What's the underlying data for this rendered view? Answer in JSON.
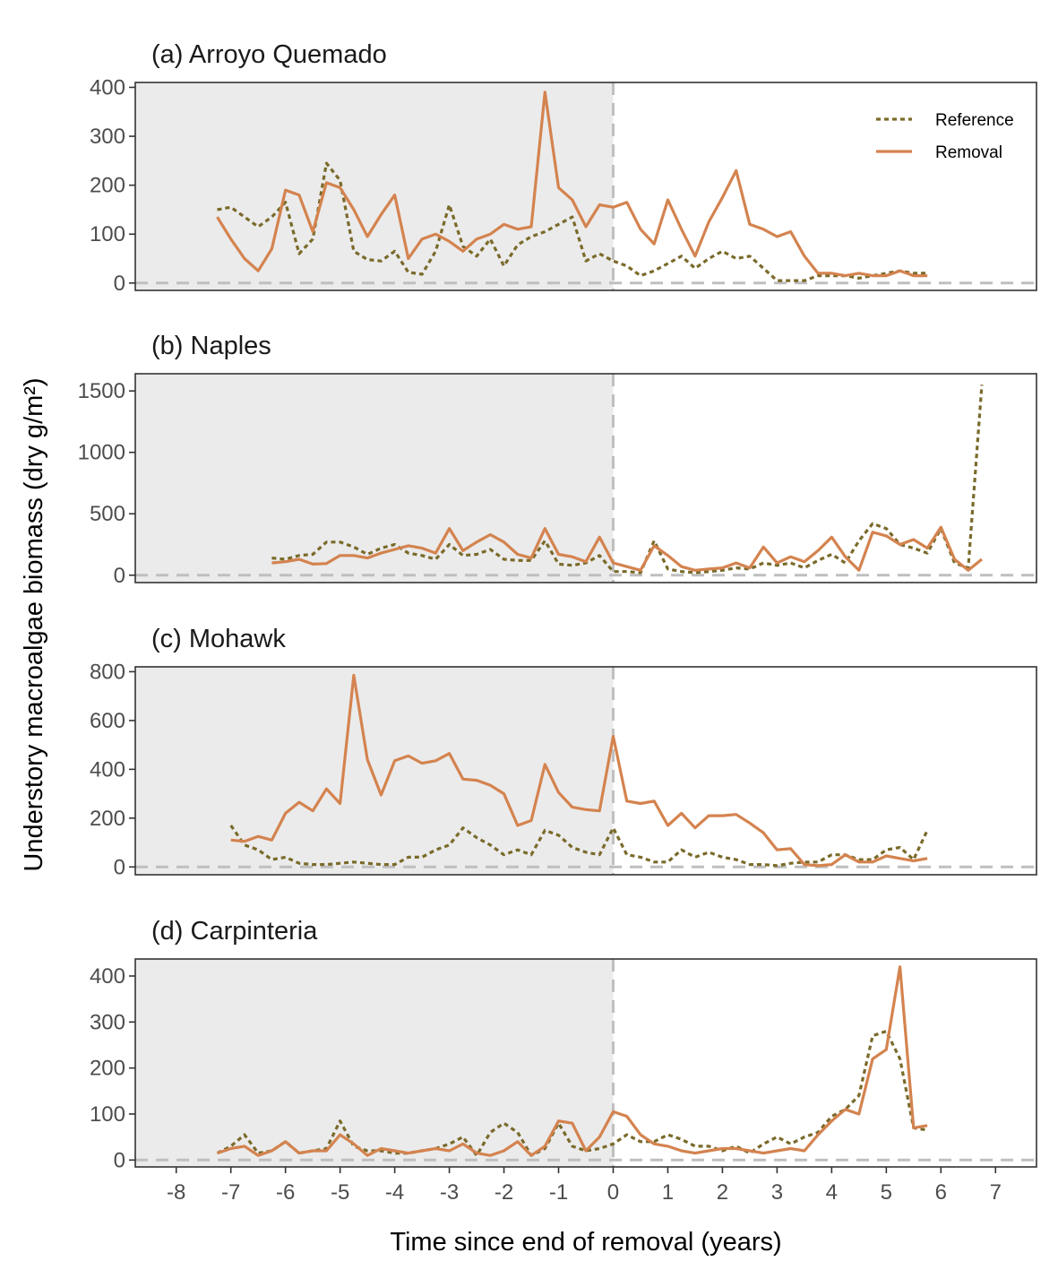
{
  "figure": {
    "ylabel": "Understory macroalgae biomass (dry g/m²)",
    "xlabel": "Time since end of removal (years)"
  },
  "legend": {
    "items": [
      {
        "label": "Reference",
        "color": "#7a6a2a",
        "style": "dotted"
      },
      {
        "label": "Removal",
        "color": "#d4834f",
        "style": "solid"
      }
    ]
  },
  "colors": {
    "reference": "#7a6a2a",
    "removal": "#d4834f",
    "shading": "#ebebeb",
    "reference_lines": "#bfbfbf"
  },
  "chart_data": [
    {
      "type": "line",
      "title": "(a) Arroyo Quemado",
      "xlim": [
        -8.75,
        7.75
      ],
      "ylim": [
        -15,
        410
      ],
      "yticks": [
        0,
        100,
        200,
        300,
        400
      ],
      "shaded_region": [
        -8.75,
        0
      ],
      "hlines": [
        0
      ],
      "vlines": [
        0
      ],
      "series": [
        {
          "name": "Reference",
          "style": "dotted",
          "x": [
            -7.25,
            -7,
            -6.75,
            -6.5,
            -6.25,
            -6,
            -5.75,
            -5.5,
            -5.25,
            -5,
            -4.75,
            -4.5,
            -4.25,
            -4,
            -3.75,
            -3.5,
            -3.25,
            -3,
            -2.75,
            -2.5,
            -2.25,
            -2,
            -1.75,
            -1.5,
            -1.25,
            -1,
            -0.75,
            -0.5,
            -0.25,
            0,
            0.25,
            0.5,
            0.75,
            1,
            1.25,
            1.5,
            1.75,
            2,
            2.25,
            2.5,
            2.75,
            3,
            3.25,
            3.5,
            3.75,
            4,
            4.25,
            4.5,
            4.75,
            5,
            5.25,
            5.5,
            5.75
          ],
          "y": [
            150,
            155,
            135,
            115,
            135,
            165,
            60,
            90,
            245,
            210,
            65,
            48,
            45,
            65,
            22,
            18,
            65,
            160,
            75,
            55,
            90,
            35,
            78,
            95,
            105,
            120,
            135,
            45,
            60,
            45,
            35,
            15,
            25,
            40,
            55,
            30,
            50,
            65,
            50,
            55,
            30,
            5,
            5,
            5,
            15,
            15,
            15,
            10,
            15,
            20,
            25,
            20,
            20
          ]
        },
        {
          "name": "Removal",
          "style": "solid",
          "x": [
            -7.25,
            -7,
            -6.75,
            -6.5,
            -6.25,
            -6,
            -5.75,
            -5.5,
            -5.25,
            -5,
            -4.75,
            -4.5,
            -4.25,
            -4,
            -3.75,
            -3.5,
            -3.25,
            -3,
            -2.75,
            -2.5,
            -2.25,
            -2,
            -1.75,
            -1.5,
            -1.25,
            -1,
            -0.75,
            -0.5,
            -0.25,
            0,
            0.25,
            0.5,
            0.75,
            1,
            1.25,
            1.5,
            1.75,
            2,
            2.25,
            2.5,
            2.75,
            3,
            3.25,
            3.5,
            3.75,
            4,
            4.25,
            4.5,
            4.75,
            5,
            5.25,
            5.5,
            5.75
          ],
          "y": [
            135,
            90,
            50,
            25,
            70,
            190,
            180,
            105,
            205,
            195,
            150,
            95,
            140,
            180,
            50,
            90,
            100,
            85,
            65,
            90,
            100,
            120,
            110,
            115,
            390,
            195,
            170,
            115,
            160,
            155,
            165,
            110,
            80,
            170,
            110,
            55,
            125,
            175,
            230,
            120,
            110,
            95,
            105,
            55,
            20,
            20,
            15,
            20,
            15,
            15,
            25,
            15,
            15
          ]
        }
      ]
    },
    {
      "type": "line",
      "title": "(b) Naples",
      "xlim": [
        -8.75,
        7.75
      ],
      "ylim": [
        -60,
        1640
      ],
      "yticks": [
        0,
        500,
        1000,
        1500
      ],
      "shaded_region": [
        -8.75,
        0
      ],
      "hlines": [
        0
      ],
      "vlines": [
        0
      ],
      "series": [
        {
          "name": "Reference",
          "style": "dotted",
          "x": [
            -6.25,
            -6,
            -5.75,
            -5.5,
            -5.25,
            -5,
            -4.75,
            -4.5,
            -4.25,
            -4,
            -3.75,
            -3.5,
            -3.25,
            -3,
            -2.75,
            -2.5,
            -2.25,
            -2,
            -1.75,
            -1.5,
            -1.25,
            -1,
            -0.75,
            -0.5,
            -0.25,
            0,
            0.25,
            0.5,
            0.75,
            1,
            1.25,
            1.5,
            1.75,
            2,
            2.25,
            2.5,
            2.75,
            3,
            3.25,
            3.5,
            3.75,
            4,
            4.25,
            4.5,
            4.75,
            5,
            5.25,
            5.5,
            5.75,
            6,
            6.25,
            6.5,
            6.75
          ],
          "y": [
            140,
            130,
            160,
            170,
            270,
            270,
            230,
            170,
            220,
            250,
            180,
            160,
            130,
            250,
            160,
            170,
            210,
            130,
            120,
            120,
            280,
            90,
            80,
            100,
            160,
            30,
            30,
            20,
            280,
            50,
            30,
            20,
            30,
            40,
            60,
            50,
            100,
            80,
            100,
            60,
            120,
            170,
            100,
            280,
            420,
            380,
            250,
            220,
            180,
            380,
            100,
            60,
            1550
          ]
        },
        {
          "name": "Removal",
          "style": "solid",
          "x": [
            -6.25,
            -6,
            -5.75,
            -5.5,
            -5.25,
            -5,
            -4.75,
            -4.5,
            -4.25,
            -4,
            -3.75,
            -3.5,
            -3.25,
            -3,
            -2.75,
            -2.5,
            -2.25,
            -2,
            -1.75,
            -1.5,
            -1.25,
            -1,
            -0.75,
            -0.5,
            -0.25,
            0,
            0.25,
            0.5,
            0.75,
            1,
            1.25,
            1.5,
            1.75,
            2,
            2.25,
            2.5,
            2.75,
            3,
            3.25,
            3.5,
            3.75,
            4,
            4.25,
            4.5,
            4.75,
            5,
            5.25,
            5.5,
            5.75,
            6,
            6.25,
            6.5,
            6.75
          ],
          "y": [
            100,
            110,
            130,
            90,
            95,
            160,
            160,
            140,
            180,
            210,
            240,
            220,
            180,
            380,
            200,
            270,
            330,
            270,
            170,
            140,
            380,
            170,
            150,
            110,
            310,
            100,
            70,
            40,
            240,
            160,
            70,
            40,
            50,
            60,
            100,
            60,
            230,
            100,
            150,
            110,
            200,
            310,
            150,
            40,
            350,
            320,
            250,
            290,
            220,
            390,
            130,
            40,
            130
          ]
        }
      ]
    },
    {
      "type": "line",
      "title": "(c) Mohawk",
      "xlim": [
        -8.75,
        7.75
      ],
      "ylim": [
        -32,
        820
      ],
      "yticks": [
        0,
        200,
        400,
        600,
        800
      ],
      "shaded_region": [
        -8.75,
        0
      ],
      "hlines": [
        0
      ],
      "vlines": [
        0
      ],
      "series": [
        {
          "name": "Reference",
          "style": "dotted",
          "x": [
            -7,
            -6.75,
            -6.5,
            -6.25,
            -6,
            -5.75,
            -5.5,
            -5.25,
            -5,
            -4.75,
            -4.5,
            -4.25,
            -4,
            -3.75,
            -3.5,
            -3.25,
            -3,
            -2.75,
            -2.5,
            -2.25,
            -2,
            -1.75,
            -1.5,
            -1.25,
            -1,
            -0.75,
            -0.5,
            -0.25,
            0,
            0.25,
            0.5,
            0.75,
            1,
            1.25,
            1.5,
            1.75,
            2,
            2.25,
            2.5,
            2.75,
            3,
            3.25,
            3.5,
            3.75,
            4,
            4.25,
            4.5,
            4.75,
            5,
            5.25,
            5.5,
            5.75
          ],
          "y": [
            170,
            90,
            70,
            30,
            40,
            15,
            10,
            10,
            15,
            20,
            15,
            10,
            10,
            40,
            40,
            70,
            90,
            160,
            120,
            90,
            50,
            70,
            50,
            150,
            130,
            80,
            60,
            50,
            160,
            50,
            40,
            20,
            20,
            70,
            40,
            60,
            40,
            30,
            10,
            10,
            5,
            15,
            20,
            20,
            50,
            50,
            30,
            30,
            70,
            80,
            30,
            150
          ]
        },
        {
          "name": "Removal",
          "style": "solid",
          "x": [
            -7,
            -6.75,
            -6.5,
            -6.25,
            -6,
            -5.75,
            -5.5,
            -5.25,
            -5,
            -4.75,
            -4.5,
            -4.25,
            -4,
            -3.75,
            -3.5,
            -3.25,
            -3,
            -2.75,
            -2.5,
            -2.25,
            -2,
            -1.75,
            -1.5,
            -1.25,
            -1,
            -0.75,
            -0.5,
            -0.25,
            0,
            0.25,
            0.5,
            0.75,
            1,
            1.25,
            1.5,
            1.75,
            2,
            2.25,
            2.5,
            2.75,
            3,
            3.25,
            3.5,
            3.75,
            4,
            4.25,
            4.5,
            4.75,
            5,
            5.25,
            5.5,
            5.75
          ],
          "y": [
            110,
            105,
            125,
            110,
            220,
            265,
            230,
            320,
            260,
            785,
            440,
            295,
            435,
            455,
            425,
            435,
            465,
            360,
            355,
            335,
            300,
            170,
            190,
            420,
            305,
            245,
            235,
            230,
            535,
            270,
            260,
            270,
            170,
            220,
            160,
            210,
            210,
            215,
            180,
            140,
            70,
            75,
            10,
            5,
            10,
            50,
            20,
            20,
            45,
            35,
            25,
            35
          ]
        }
      ]
    },
    {
      "type": "line",
      "title": "(d) Carpinteria",
      "xlim": [
        -8.75,
        7.75
      ],
      "ylim": [
        -15,
        437
      ],
      "yticks": [
        0,
        100,
        200,
        300,
        400
      ],
      "shaded_region": [
        -8.75,
        0
      ],
      "hlines": [
        0
      ],
      "vlines": [
        0
      ],
      "xticks": [
        -8,
        -7,
        -6,
        -5,
        -4,
        -3,
        -2,
        -1,
        0,
        1,
        2,
        3,
        4,
        5,
        6,
        7
      ],
      "series": [
        {
          "name": "Reference",
          "style": "dotted",
          "x": [
            -7.25,
            -7,
            -6.75,
            -6.5,
            -6.25,
            -6,
            -5.75,
            -5.5,
            -5.25,
            -5,
            -4.75,
            -4.5,
            -4.25,
            -4,
            -3.75,
            -3.5,
            -3.25,
            -3,
            -2.75,
            -2.5,
            -2.25,
            -2,
            -1.75,
            -1.5,
            -1.25,
            -1,
            -0.75,
            -0.5,
            -0.25,
            0,
            0.25,
            0.5,
            0.75,
            1,
            1.25,
            1.5,
            1.75,
            2,
            2.25,
            2.5,
            2.75,
            3,
            3.25,
            3.5,
            3.75,
            4,
            4.25,
            4.5,
            4.75,
            5,
            5.25,
            5.5,
            5.75
          ],
          "y": [
            15,
            30,
            55,
            15,
            20,
            40,
            15,
            20,
            25,
            85,
            30,
            20,
            20,
            15,
            15,
            20,
            25,
            35,
            50,
            10,
            60,
            80,
            60,
            10,
            25,
            80,
            30,
            20,
            25,
            35,
            55,
            40,
            40,
            55,
            45,
            30,
            30,
            20,
            30,
            15,
            35,
            50,
            35,
            50,
            60,
            95,
            110,
            140,
            270,
            280,
            220,
            70,
            65
          ]
        },
        {
          "name": "Removal",
          "style": "solid",
          "x": [
            -7.25,
            -7,
            -6.75,
            -6.5,
            -6.25,
            -6,
            -5.75,
            -5.5,
            -5.25,
            -5,
            -4.75,
            -4.5,
            -4.25,
            -4,
            -3.75,
            -3.5,
            -3.25,
            -3,
            -2.75,
            -2.5,
            -2.25,
            -2,
            -1.75,
            -1.5,
            -1.25,
            -1,
            -0.75,
            -0.5,
            -0.25,
            0,
            0.25,
            0.5,
            0.75,
            1,
            1.25,
            1.5,
            1.75,
            2,
            2.25,
            2.5,
            2.75,
            3,
            3.25,
            3.5,
            3.75,
            4,
            4.25,
            4.5,
            4.75,
            5,
            5.25,
            5.5,
            5.75
          ],
          "y": [
            15,
            25,
            30,
            10,
            20,
            40,
            15,
            20,
            20,
            55,
            35,
            10,
            25,
            20,
            15,
            20,
            25,
            20,
            35,
            15,
            10,
            20,
            40,
            10,
            30,
            85,
            80,
            20,
            50,
            105,
            95,
            55,
            35,
            30,
            20,
            15,
            20,
            25,
            25,
            20,
            15,
            20,
            25,
            20,
            55,
            85,
            110,
            100,
            220,
            240,
            420,
            70,
            75
          ]
        }
      ]
    }
  ]
}
